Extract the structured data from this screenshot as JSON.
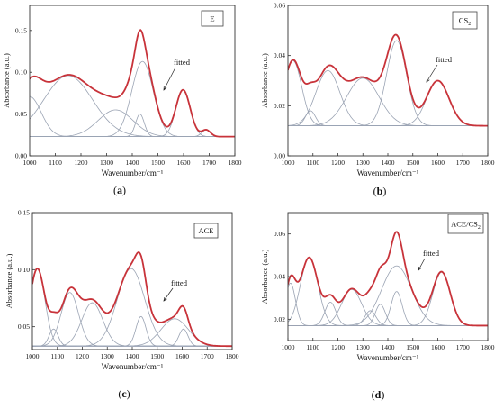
{
  "figure": {
    "panels": [
      {
        "letter": "(a)"
      },
      {
        "letter": "(b)"
      },
      {
        "letter": "(c)"
      },
      {
        "letter": "(d)"
      }
    ],
    "colors": {
      "fitted": "#c8333a",
      "component": "#9aa3b3",
      "baseline": "#3c55c8",
      "axis": "#333333"
    }
  },
  "chart_data": [
    {
      "type": "line",
      "panel": "(a)",
      "legend": "E",
      "annotation": "fitted",
      "xlabel": "Wavenumber/cm⁻¹",
      "ylabel": "Absorbance (a.u.)",
      "xlim": [
        1000,
        1800
      ],
      "ylim": [
        0,
        0.18
      ],
      "xticks": [
        1000,
        1100,
        1200,
        1300,
        1400,
        1500,
        1600,
        1700,
        1800
      ],
      "yticks": [
        0.0,
        0.05,
        0.1,
        0.15
      ],
      "yticklabels": [
        "0.00",
        "0.05",
        "0.10",
        "0.15"
      ],
      "baseline": 0.023,
      "components": [
        {
          "center": 1000,
          "height": 0.048,
          "width": 45
        },
        {
          "center": 1150,
          "height": 0.073,
          "width": 95
        },
        {
          "center": 1335,
          "height": 0.032,
          "width": 68
        },
        {
          "center": 1430,
          "height": 0.027,
          "width": 17
        },
        {
          "center": 1440,
          "height": 0.09,
          "width": 42
        },
        {
          "center": 1598,
          "height": 0.056,
          "width": 28
        },
        {
          "center": 1688,
          "height": 0.008,
          "width": 17
        }
      ]
    },
    {
      "type": "line",
      "panel": "(b)",
      "legend": "CS2",
      "annotation": "fitted",
      "xlabel": "Wavenumber/cm⁻¹",
      "ylabel": "Absorbance (a.u.)",
      "xlim": [
        1000,
        1800
      ],
      "ylim": [
        0,
        0.06
      ],
      "xticks": [
        1000,
        1100,
        1200,
        1300,
        1400,
        1500,
        1600,
        1700,
        1800
      ],
      "yticks": [
        0.0,
        0.02,
        0.04,
        0.06
      ],
      "yticklabels": [
        "0.00",
        "0.02",
        "0.04",
        "0.06"
      ],
      "baseline": 0.012,
      "components": [
        {
          "center": 1020,
          "height": 0.026,
          "width": 35
        },
        {
          "center": 1090,
          "height": 0.006,
          "width": 20
        },
        {
          "center": 1160,
          "height": 0.022,
          "width": 48
        },
        {
          "center": 1300,
          "height": 0.019,
          "width": 65
        },
        {
          "center": 1435,
          "height": 0.034,
          "width": 40
        },
        {
          "center": 1600,
          "height": 0.018,
          "width": 45
        }
      ]
    },
    {
      "type": "line",
      "panel": "(c)",
      "legend": "ACE",
      "annotation": "fitted",
      "xlabel": "Wavenumber/cm⁻¹",
      "ylabel": "Absorbance (a.u.)",
      "xlim": [
        1000,
        1800
      ],
      "ylim": [
        0.03,
        0.15
      ],
      "xticks": [
        1000,
        1100,
        1200,
        1300,
        1400,
        1500,
        1600,
        1700,
        1800
      ],
      "yticks": [
        0.05,
        0.1,
        0.15
      ],
      "yticklabels": [
        "0.05",
        "0.10",
        "0.15"
      ],
      "baseline": 0.033,
      "components": [
        {
          "center": 1020,
          "height": 0.068,
          "width": 30
        },
        {
          "center": 1085,
          "height": 0.015,
          "width": 18
        },
        {
          "center": 1150,
          "height": 0.047,
          "width": 35
        },
        {
          "center": 1240,
          "height": 0.038,
          "width": 42
        },
        {
          "center": 1395,
          "height": 0.068,
          "width": 55
        },
        {
          "center": 1435,
          "height": 0.026,
          "width": 20
        },
        {
          "center": 1570,
          "height": 0.024,
          "width": 55
        },
        {
          "center": 1605,
          "height": 0.015,
          "width": 18
        }
      ]
    },
    {
      "type": "line",
      "panel": "(d)",
      "legend": "ACE/CS2",
      "annotation": "fitted",
      "xlabel": "Wavenumber/cm⁻¹",
      "ylabel": "Absorbance (a.u.)",
      "xlim": [
        1000,
        1800
      ],
      "ylim": [
        0.01,
        0.07
      ],
      "xticks": [
        1000,
        1100,
        1200,
        1300,
        1400,
        1500,
        1600,
        1700,
        1800
      ],
      "yticks": [
        0.02,
        0.04,
        0.06
      ],
      "yticklabels": [
        "0.02",
        "0.04",
        "0.06"
      ],
      "baseline": 0.017,
      "components": [
        {
          "center": 1010,
          "height": 0.02,
          "width": 20
        },
        {
          "center": 1085,
          "height": 0.032,
          "width": 35
        },
        {
          "center": 1170,
          "height": 0.011,
          "width": 22
        },
        {
          "center": 1255,
          "height": 0.017,
          "width": 40
        },
        {
          "center": 1330,
          "height": 0.007,
          "width": 22
        },
        {
          "center": 1370,
          "height": 0.01,
          "width": 20
        },
        {
          "center": 1435,
          "height": 0.016,
          "width": 22
        },
        {
          "center": 1435,
          "height": 0.028,
          "width": 60
        },
        {
          "center": 1615,
          "height": 0.025,
          "width": 35
        }
      ]
    }
  ]
}
